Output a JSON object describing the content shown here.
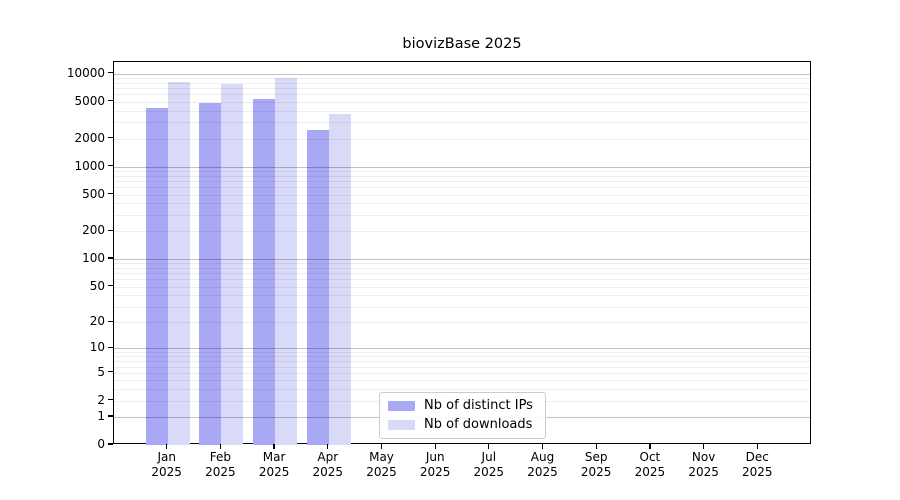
{
  "chart_data": {
    "type": "bar",
    "title": "biovizBase 2025",
    "scale": "log1p",
    "grid": true,
    "legend_position": "lower-center",
    "year": "2025",
    "categories": [
      "Jan",
      "Feb",
      "Mar",
      "Apr",
      "May",
      "Jun",
      "Jul",
      "Aug",
      "Sep",
      "Oct",
      "Nov",
      "Dec"
    ],
    "series": [
      {
        "name": "Nb of distinct IPs",
        "color": "#a8a8f5",
        "values": [
          4300,
          4800,
          5400,
          2500,
          0,
          0,
          0,
          0,
          0,
          0,
          0,
          0
        ]
      },
      {
        "name": "Nb of downloads",
        "color": "#d9d9f8",
        "values": [
          8100,
          7700,
          9000,
          3700,
          0,
          0,
          0,
          0,
          0,
          0,
          0,
          0
        ]
      }
    ],
    "y_ticks": [
      0,
      1,
      2,
      5,
      10,
      20,
      50,
      100,
      200,
      500,
      1000,
      2000,
      5000,
      10000
    ],
    "ylim": [
      0,
      13400
    ],
    "xlabel": "",
    "ylabel": ""
  },
  "colors": {
    "background": "#ffffff",
    "bar_distinct_ips": "#a8a8f5",
    "bar_downloads": "#d9d9f8",
    "grid_major": "#c2c2c2",
    "grid_minor": "#efefef",
    "axis": "#000000",
    "legend_border": "#cccccc"
  }
}
